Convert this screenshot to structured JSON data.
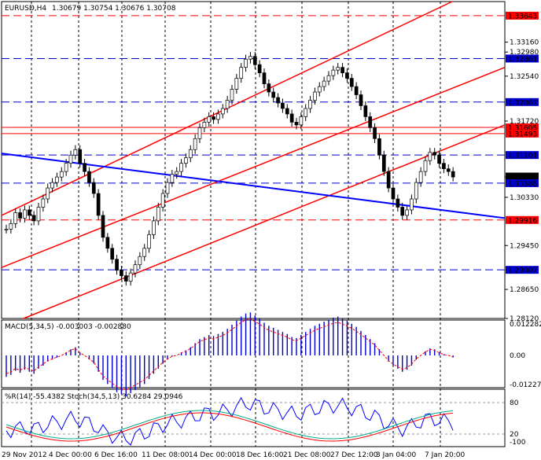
{
  "header": {
    "symbol": "EURUSD,H4",
    "ohlc": "1.30679 1.30754 1.30676 1.30708"
  },
  "macd": {
    "label": "MACD(5,34,5) -0.003003 -0.002880",
    "scale": [
      "0.012282",
      "0.00",
      "-0.012278"
    ]
  },
  "osc": {
    "label": "%R(14) -55.4382  Stoch(34,5,13) 30.6284 29.0946",
    "scale": [
      "80",
      "20",
      "-100"
    ]
  },
  "price_scale": [
    "1.33160",
    "1.32980",
    "1.32540",
    "1.31720",
    "1.30700",
    "1.30330",
    "1.29450",
    "1.28650",
    "1.28120"
  ],
  "levels": [
    {
      "label": "1.33643",
      "price": 1.33643,
      "color": "#ff0000",
      "style": "dash"
    },
    {
      "label": "1.32861",
      "price": 1.32861,
      "color": "#0000cc",
      "style": "dash"
    },
    {
      "label": "1.32067",
      "price": 1.32067,
      "color": "#0000cc",
      "style": "dash"
    },
    {
      "label": "1.31605",
      "price": 1.31605,
      "color": "#ff0000",
      "style": "solid"
    },
    {
      "label": "1.31493",
      "price": 1.31493,
      "color": "#ff0000",
      "style": "solid"
    },
    {
      "label": "1.31101",
      "price": 1.31101,
      "color": "#0000cc",
      "style": "dash"
    },
    {
      "label": "1.30708",
      "price": 1.30708,
      "color": "#000000",
      "style": "none"
    },
    {
      "label": "1.30588",
      "price": 1.30588,
      "color": "#0000cc",
      "style": "dash"
    },
    {
      "label": "1.29916",
      "price": 1.29916,
      "color": "#ff0000",
      "style": "dash"
    },
    {
      "label": "1.29007",
      "price": 1.29007,
      "color": "#0000cc",
      "style": "dash"
    }
  ],
  "time_scale": [
    "29 Nov 2012",
    "4 Dec 00:00",
    "6 Dec 16:00",
    "11 Dec 08:00",
    "14 Dec 00:00",
    "18 Dec 16:00",
    "21 Dec 08:00",
    "27 Dec 12:00",
    "3 Jan 04:00",
    "7 Jan 20:00"
  ],
  "colors": {
    "bull": "#ffffff",
    "bear": "#000000",
    "channel": "#ff0000",
    "trend": "#0000ff",
    "macd_hist": "#0000cc",
    "signal": "#ff0000",
    "williams": "#0000ff",
    "stoch_main": "#00aa88",
    "stoch_signal": "#ff0000"
  },
  "chart_data": {
    "type": "candlestick",
    "symbol": "EURUSD",
    "timeframe": "H4",
    "ylim": [
      1.2812,
      1.339
    ],
    "closes": [
      1.2975,
      1.2985,
      1.3005,
      1.2995,
      1.301,
      1.3,
      1.299,
      1.3015,
      1.303,
      1.305,
      1.306,
      1.307,
      1.308,
      1.3095,
      1.311,
      1.312,
      1.3095,
      1.308,
      1.306,
      1.304,
      1.3,
      1.296,
      1.294,
      1.292,
      1.29,
      1.289,
      1.288,
      1.2895,
      1.291,
      1.2925,
      1.294,
      1.2965,
      1.299,
      1.3015,
      1.304,
      1.306,
      1.3075,
      1.308,
      1.3095,
      1.3105,
      1.312,
      1.314,
      1.316,
      1.317,
      1.318,
      1.3175,
      1.3185,
      1.3195,
      1.321,
      1.323,
      1.325,
      1.327,
      1.3285,
      1.329,
      1.3275,
      1.326,
      1.324,
      1.3225,
      1.3215,
      1.3205,
      1.3195,
      1.3185,
      1.317,
      1.3165,
      1.318,
      1.3195,
      1.321,
      1.3225,
      1.3235,
      1.3245,
      1.3255,
      1.3265,
      1.327,
      1.326,
      1.325,
      1.3235,
      1.322,
      1.32,
      1.318,
      1.316,
      1.314,
      1.311,
      1.308,
      1.305,
      1.303,
      1.3015,
      1.3,
      1.301,
      1.303,
      1.306,
      1.308,
      1.31,
      1.3115,
      1.311,
      1.3095,
      1.3085,
      1.308,
      1.307
    ]
  }
}
